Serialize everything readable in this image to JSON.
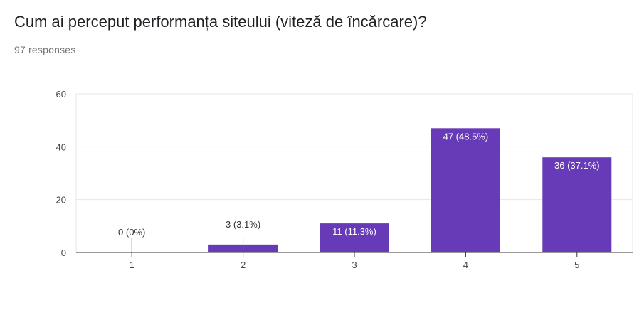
{
  "question": {
    "title": "Cum ai perceput performanța siteului (viteză de încărcare)?",
    "responses": "97 responses"
  },
  "chart_data": {
    "type": "bar",
    "categories": [
      "1",
      "2",
      "3",
      "4",
      "5"
    ],
    "values": [
      0,
      3,
      11,
      47,
      36
    ],
    "data_labels": [
      "0 (0%)",
      "3 (3.1%)",
      "11 (11.3%)",
      "47 (48.5%)",
      "36 (37.1%)"
    ],
    "yticks": [
      "0",
      "20",
      "40",
      "60"
    ],
    "ylim": [
      0,
      60
    ],
    "grid": true,
    "legend": "none",
    "bar_color": "#673ab7"
  }
}
